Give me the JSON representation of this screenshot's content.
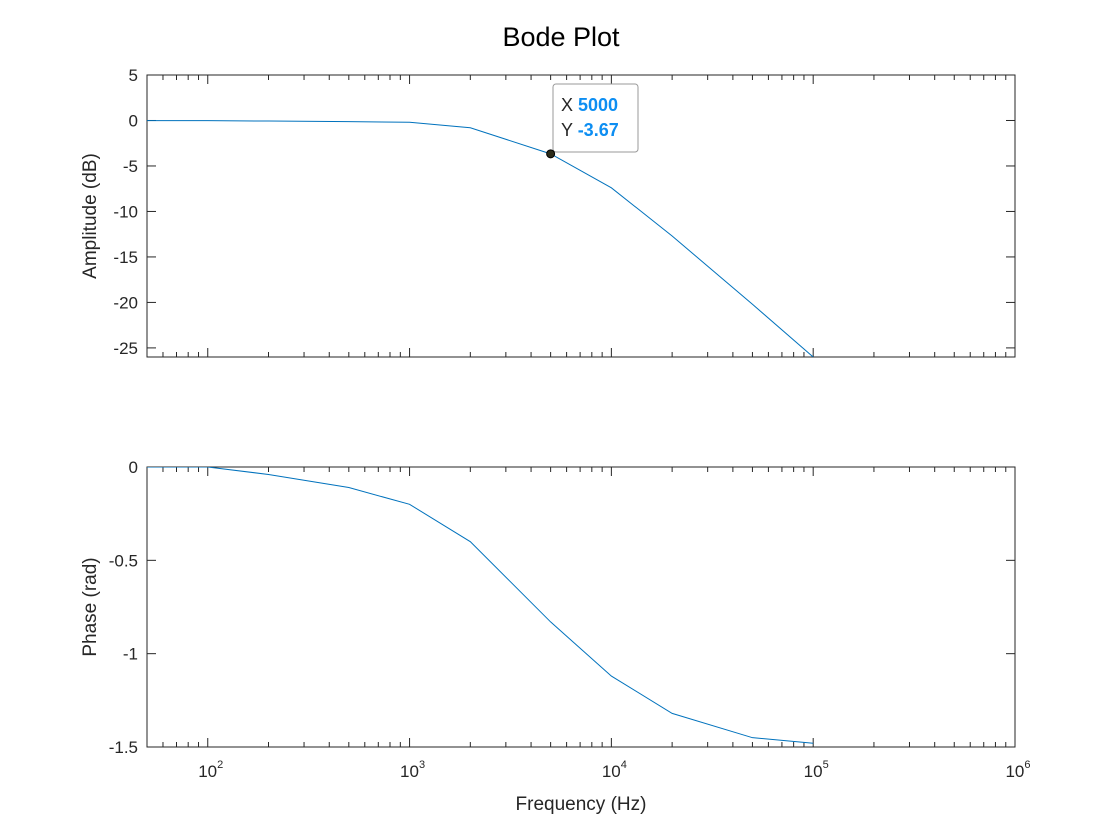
{
  "chart_data": [
    {
      "type": "line",
      "title": "Bode Plot",
      "xlabel": "",
      "ylabel": "Amplitude (dB)",
      "xscale": "log",
      "xlim": [
        50,
        1000000
      ],
      "ylim": [
        -26,
        5
      ],
      "yticks": [
        5,
        0,
        -5,
        -10,
        -15,
        -20,
        -25
      ],
      "x_tick_labels_shown": false,
      "grid": false,
      "series": [
        {
          "color": "#0072BD",
          "x": [
            50,
            100,
            200,
            500,
            1000,
            2000,
            5000,
            10000,
            20000,
            50000,
            100000
          ],
          "y": [
            -0.01,
            -0.02,
            -0.06,
            -0.12,
            -0.2,
            -0.8,
            -3.67,
            -7.4,
            -12.7,
            -20.2,
            -26
          ]
        }
      ],
      "datatip": {
        "x": 5000,
        "y": -3.67,
        "x_label": "X",
        "y_label": "Y",
        "x_value": "5000",
        "y_value": "-3.67",
        "value_color": "#0D8EF2"
      }
    },
    {
      "type": "line",
      "xlabel": "Frequency (Hz)",
      "ylabel": "Phase (rad)",
      "xscale": "log",
      "xlim": [
        50,
        1000000
      ],
      "ylim": [
        -1.5,
        0
      ],
      "yticks": [
        0,
        -0.5,
        -1,
        -1.5
      ],
      "xticks": [
        100,
        1000,
        10000,
        100000,
        1000000
      ],
      "xtick_labels": [
        {
          "base": "10",
          "exp": "2"
        },
        {
          "base": "10",
          "exp": "3"
        },
        {
          "base": "10",
          "exp": "4"
        },
        {
          "base": "10",
          "exp": "5"
        },
        {
          "base": "10",
          "exp": "6"
        }
      ],
      "grid": false,
      "series": [
        {
          "color": "#0072BD",
          "x": [
            50,
            100,
            200,
            500,
            1000,
            2000,
            5000,
            10000,
            20000,
            50000,
            100000
          ],
          "y": [
            0,
            0,
            -0.04,
            -0.11,
            -0.2,
            -0.4,
            -0.83,
            -1.12,
            -1.32,
            -1.45,
            -1.48
          ]
        }
      ]
    }
  ]
}
